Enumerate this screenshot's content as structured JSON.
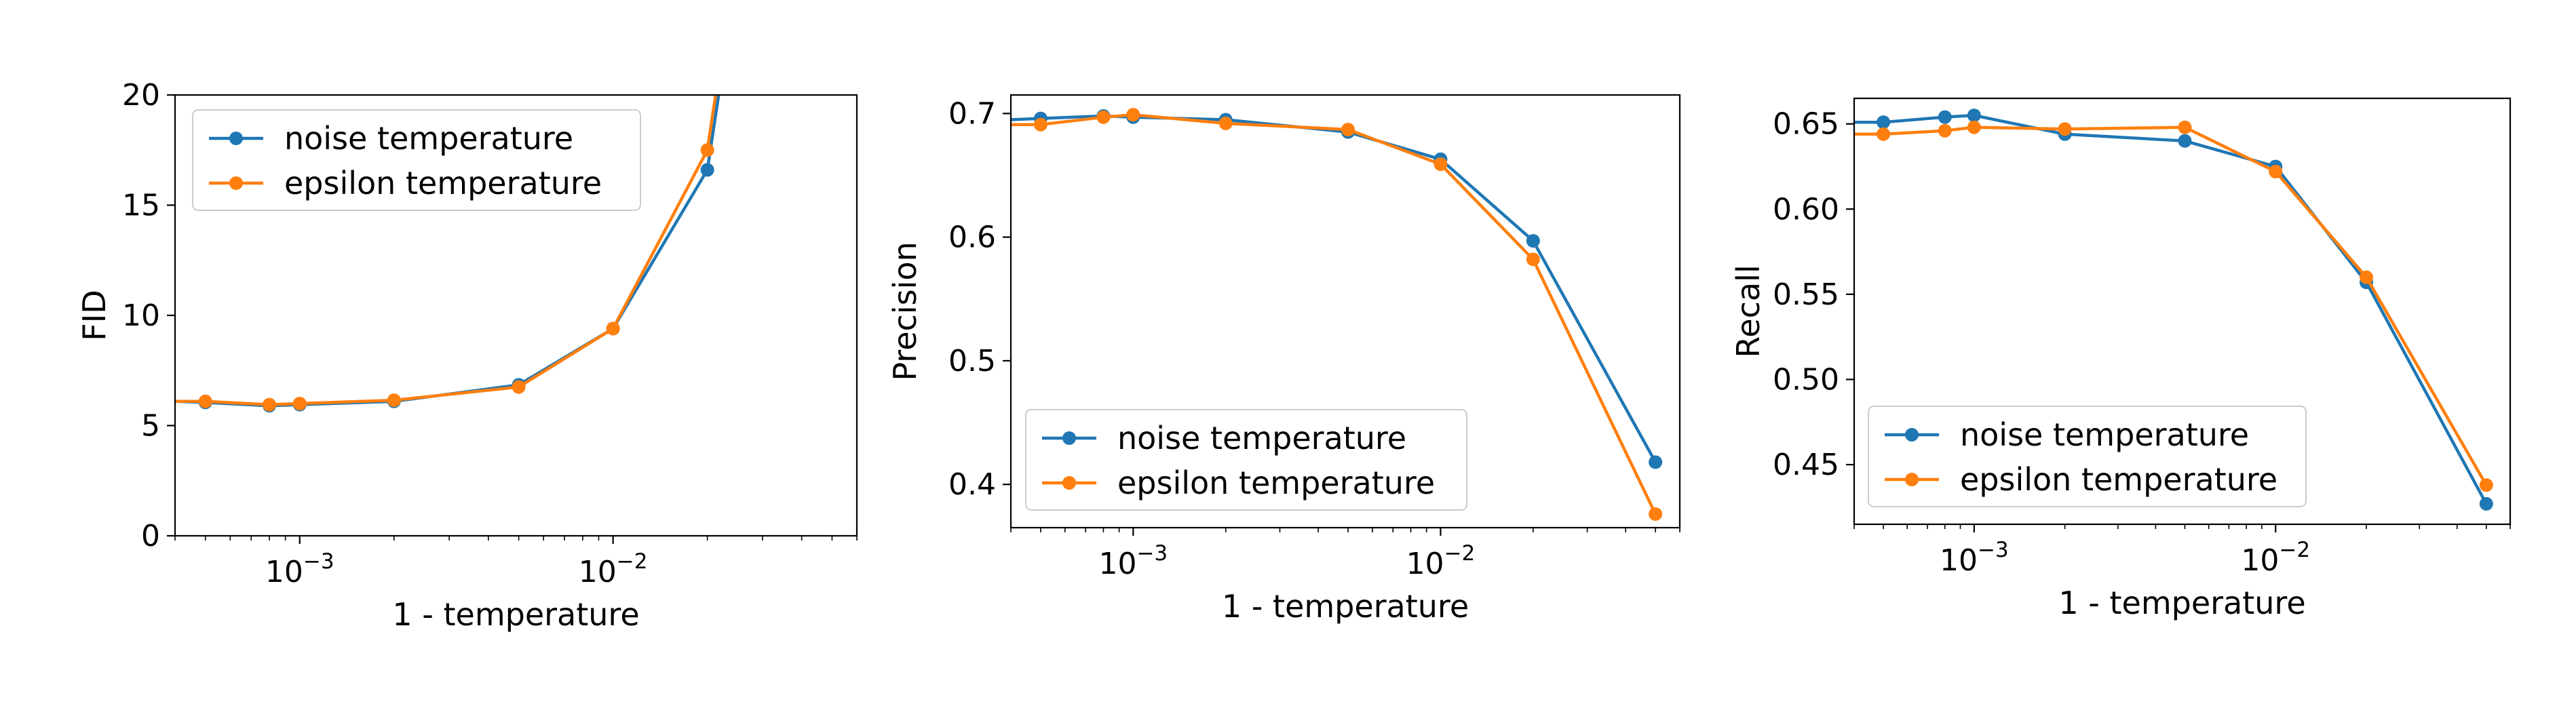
{
  "colors": {
    "noise": "#1f77b4",
    "epsilon": "#ff7f0e"
  },
  "chart_data": [
    {
      "type": "line",
      "xscale": "log",
      "xlim": [
        0.0004,
        0.06
      ],
      "ylim": [
        0,
        20
      ],
      "xlabel": "1 - temperature",
      "ylabel": "FID",
      "legend_position": "top-left",
      "grid": false,
      "x_ticks": [
        {
          "base": "10",
          "exp": "−3",
          "value": 0.001
        },
        {
          "base": "10",
          "exp": "−2",
          "value": 0.01
        }
      ],
      "y_ticks": [
        "0",
        "5",
        "10",
        "15",
        "20"
      ],
      "y_tick_values": [
        0,
        5,
        10,
        15,
        20
      ],
      "series": [
        {
          "name": "noise temperature",
          "color_key": "noise",
          "x": [
            0.0004,
            0.0005,
            0.0008,
            0.001,
            0.002,
            0.005,
            0.01,
            0.02,
            0.022
          ],
          "y": [
            6.1,
            6.05,
            5.9,
            5.95,
            6.1,
            6.85,
            9.4,
            16.6,
            20.5
          ],
          "markers": [
            false,
            true,
            true,
            true,
            true,
            true,
            true,
            true,
            false
          ]
        },
        {
          "name": "epsilon temperature",
          "color_key": "epsilon",
          "x": [
            0.0004,
            0.0005,
            0.0008,
            0.001,
            0.002,
            0.005,
            0.01,
            0.02,
            0.0215
          ],
          "y": [
            6.1,
            6.1,
            5.95,
            6.0,
            6.15,
            6.75,
            9.4,
            17.5,
            20.5
          ],
          "markers": [
            false,
            true,
            true,
            true,
            true,
            true,
            true,
            true,
            false
          ]
        }
      ]
    },
    {
      "type": "line",
      "xscale": "log",
      "xlim": [
        0.0004,
        0.06
      ],
      "ylim": [
        0.365,
        0.715
      ],
      "xlabel": "1 - temperature",
      "ylabel": "Precision",
      "legend_position": "lower-left",
      "grid": false,
      "x_ticks": [
        {
          "base": "10",
          "exp": "−3",
          "value": 0.001
        },
        {
          "base": "10",
          "exp": "−2",
          "value": 0.01
        }
      ],
      "y_ticks": [
        "0.4",
        "0.5",
        "0.6",
        "0.7"
      ],
      "y_tick_values": [
        0.4,
        0.5,
        0.6,
        0.7
      ],
      "series": [
        {
          "name": "noise temperature",
          "color_key": "noise",
          "x": [
            0.0004,
            0.0005,
            0.0008,
            0.001,
            0.002,
            0.005,
            0.01,
            0.02,
            0.05
          ],
          "y": [
            0.695,
            0.696,
            0.698,
            0.697,
            0.695,
            0.685,
            0.663,
            0.597,
            0.418
          ],
          "markers": [
            false,
            true,
            true,
            true,
            true,
            true,
            true,
            true,
            true
          ]
        },
        {
          "name": "epsilon temperature",
          "color_key": "epsilon",
          "x": [
            0.0004,
            0.0005,
            0.0008,
            0.001,
            0.002,
            0.005,
            0.01,
            0.02,
            0.05
          ],
          "y": [
            0.691,
            0.691,
            0.697,
            0.699,
            0.692,
            0.687,
            0.659,
            0.582,
            0.376
          ],
          "markers": [
            false,
            true,
            true,
            true,
            true,
            true,
            true,
            true,
            true
          ]
        }
      ]
    },
    {
      "type": "line",
      "xscale": "log",
      "xlim": [
        0.0004,
        0.06
      ],
      "ylim": [
        0.415,
        0.665
      ],
      "xlabel": "1 - temperature",
      "ylabel": "Recall",
      "legend_position": "lower-left",
      "grid": false,
      "x_ticks": [
        {
          "base": "10",
          "exp": "−3",
          "value": 0.001
        },
        {
          "base": "10",
          "exp": "−2",
          "value": 0.01
        }
      ],
      "y_ticks": [
        "0.45",
        "0.50",
        "0.55",
        "0.60",
        "0.65"
      ],
      "y_tick_values": [
        0.45,
        0.5,
        0.55,
        0.6,
        0.65
      ],
      "series": [
        {
          "name": "noise temperature",
          "color_key": "noise",
          "x": [
            0.0004,
            0.0005,
            0.0008,
            0.001,
            0.002,
            0.005,
            0.01,
            0.02,
            0.05
          ],
          "y": [
            0.651,
            0.651,
            0.654,
            0.655,
            0.644,
            0.64,
            0.625,
            0.557,
            0.427
          ],
          "markers": [
            false,
            true,
            true,
            true,
            true,
            true,
            true,
            true,
            true
          ]
        },
        {
          "name": "epsilon temperature",
          "color_key": "epsilon",
          "x": [
            0.0004,
            0.0005,
            0.0008,
            0.001,
            0.002,
            0.005,
            0.01,
            0.02,
            0.05
          ],
          "y": [
            0.644,
            0.644,
            0.646,
            0.648,
            0.647,
            0.648,
            0.622,
            0.56,
            0.438
          ],
          "markers": [
            false,
            true,
            true,
            true,
            true,
            true,
            true,
            true,
            true
          ]
        }
      ]
    }
  ]
}
